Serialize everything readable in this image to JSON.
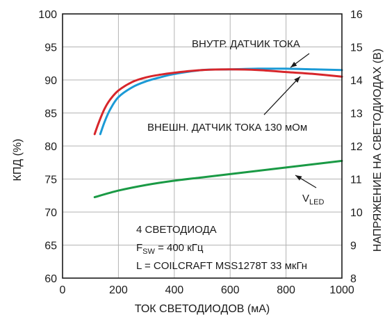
{
  "chart_data": {
    "type": "line",
    "xlabel": "ТОК СВЕТОДИОДОВ (мА)",
    "ylabel_left": "КПД (%)",
    "ylabel_right": "НАПРЯЖЕНИЕ НА СВЕТОДИОДАХ (В)",
    "xlim": [
      0,
      1000
    ],
    "ylim_left": [
      60,
      100
    ],
    "ylim_right": [
      8,
      16
    ],
    "grid": true,
    "x_ticks": [
      "0",
      "200",
      "400",
      "600",
      "800",
      "1000"
    ],
    "y_left_ticks": [
      "60",
      "65",
      "70",
      "75",
      "80",
      "85",
      "90",
      "95",
      "100"
    ],
    "y_right_ticks": [
      "8",
      "9",
      "10",
      "11",
      "12",
      "13",
      "14",
      "15",
      "16"
    ],
    "colors": {
      "internal": "#d7262b",
      "external": "#1b9ad6",
      "vled": "#1a9a45",
      "grid": "#b3b3b3"
    },
    "series": [
      {
        "name": "internal",
        "axis": "left",
        "x": [
          115,
          130,
          150,
          170,
          200,
          250,
          300,
          350,
          400,
          500,
          600,
          700,
          800,
          900,
          1000
        ],
        "y": [
          81.8,
          83.6,
          85.6,
          87.0,
          88.4,
          89.7,
          90.4,
          90.8,
          91.1,
          91.5,
          91.6,
          91.5,
          91.2,
          90.9,
          90.5
        ]
      },
      {
        "name": "external",
        "axis": "left",
        "x": [
          135,
          150,
          170,
          200,
          250,
          300,
          350,
          400,
          500,
          600,
          700,
          800,
          900,
          1000
        ],
        "y": [
          81.8,
          83.6,
          85.5,
          87.4,
          88.9,
          89.8,
          90.4,
          90.9,
          91.5,
          91.6,
          91.7,
          91.7,
          91.6,
          91.5
        ]
      },
      {
        "name": "vled",
        "axis": "right",
        "x": [
          115,
          200,
          300,
          400,
          500,
          600,
          700,
          800,
          900,
          1000
        ],
        "y": [
          10.45,
          10.65,
          10.82,
          10.95,
          11.05,
          11.15,
          11.25,
          11.35,
          11.45,
          11.55
        ]
      }
    ],
    "annotations": {
      "internal_label": "ВНУТР. ДАТЧИК ТОКА",
      "external_label": "ВНЕШН. ДАТЧИК ТОКА 130 мОм",
      "vled_main": "V",
      "vled_sub": "LED",
      "info_line1": "4 СВЕТОДИОДА",
      "info_line2_main": "F",
      "info_line2_sub": "SW",
      "info_line2_rest": " = 400 кГц",
      "info_line3": "L = COILCRAFT MSS1278T 33 мкГн"
    }
  }
}
